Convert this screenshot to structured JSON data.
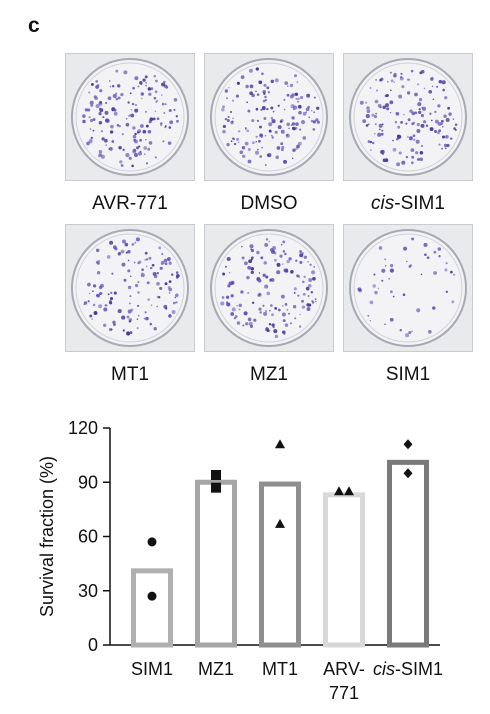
{
  "panel_letter": "c",
  "plates": [
    {
      "label_italic": "",
      "label_rest": "AVR-771",
      "density": 1.0
    },
    {
      "label_italic": "",
      "label_rest": "DMSO",
      "density": 1.0
    },
    {
      "label_italic": "cis",
      "label_rest": "-SIM1",
      "density": 0.95
    },
    {
      "label_italic": "",
      "label_rest": "MT1",
      "density": 0.85
    },
    {
      "label_italic": "",
      "label_rest": "MZ1",
      "density": 0.95
    },
    {
      "label_italic": "",
      "label_rest": "SIM1",
      "density": 0.3
    }
  ],
  "chart_data": {
    "type": "bar",
    "title": "",
    "xlabel": "",
    "ylabel": "Survival fraction (%)",
    "ylim": [
      0,
      120
    ],
    "yticks": [
      0,
      30,
      60,
      90,
      120
    ],
    "categories": [
      {
        "italic": "",
        "rest": "SIM1",
        "line2": ""
      },
      {
        "italic": "",
        "rest": "MZ1",
        "line2": ""
      },
      {
        "italic": "",
        "rest": "MT1",
        "line2": ""
      },
      {
        "italic": "",
        "rest": "ARV-",
        "line2": "771"
      },
      {
        "italic": "cis",
        "rest": "-SIM1",
        "line2": ""
      }
    ],
    "values": [
      41,
      90,
      89,
      83,
      101
    ],
    "bar_colors": [
      "#b0b0b0",
      "#a6a6a6",
      "#8f8f8f",
      "#d8d8d8",
      "#7a7a7a"
    ],
    "points": [
      [
        57,
        27
      ],
      [
        94,
        87
      ],
      [
        111,
        67
      ],
      [
        85,
        85
      ],
      [
        111,
        95
      ]
    ],
    "markers": [
      "circle",
      "square",
      "triangle",
      "triangle",
      "diamond"
    ],
    "grid": false
  }
}
